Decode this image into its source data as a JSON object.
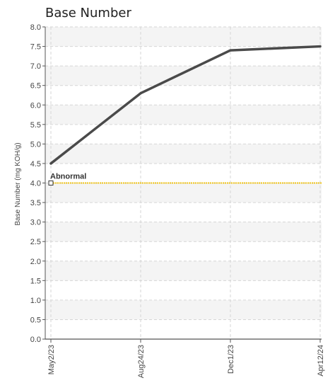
{
  "chart_data": {
    "type": "line",
    "title": "Base Number",
    "xlabel": "",
    "ylabel": "Base Number (mg KOH/g)",
    "categories": [
      "May2/23",
      "Aug24/23",
      "Dec1/23",
      "Apr12/24"
    ],
    "series": [
      {
        "values": [
          4.5,
          6.3,
          7.4,
          7.5
        ],
        "color": "#4a4a4a"
      }
    ],
    "ylim": [
      0,
      8
    ],
    "ytick_step": 0.5,
    "yticks": [
      "0.0",
      "0.5",
      "1.0",
      "1.5",
      "2.0",
      "2.5",
      "3.0",
      "3.5",
      "4.0",
      "4.5",
      "5.0",
      "5.5",
      "6.0",
      "6.5",
      "7.0",
      "7.5",
      "8.0"
    ],
    "grid": true,
    "threshold": {
      "label": "Abnormal",
      "value": 4.0,
      "color": "#f0c419"
    }
  }
}
